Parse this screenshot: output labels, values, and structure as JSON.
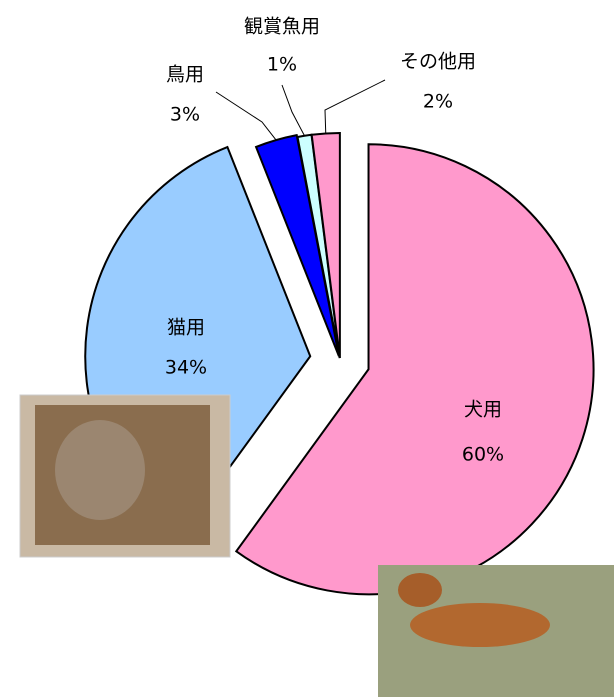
{
  "chart_data": {
    "type": "pie",
    "categories": [
      "犬用",
      "猫用",
      "鳥用",
      "観賞魚用",
      "その他用"
    ],
    "values": [
      60,
      34,
      3,
      1,
      2
    ],
    "value_labels": [
      "60%",
      "34%",
      "3%",
      "1%",
      "2%"
    ],
    "colors": [
      "#ff99cc",
      "#99ccff",
      "#0000ff",
      "#ccffff",
      "#ff99cc"
    ]
  }
}
